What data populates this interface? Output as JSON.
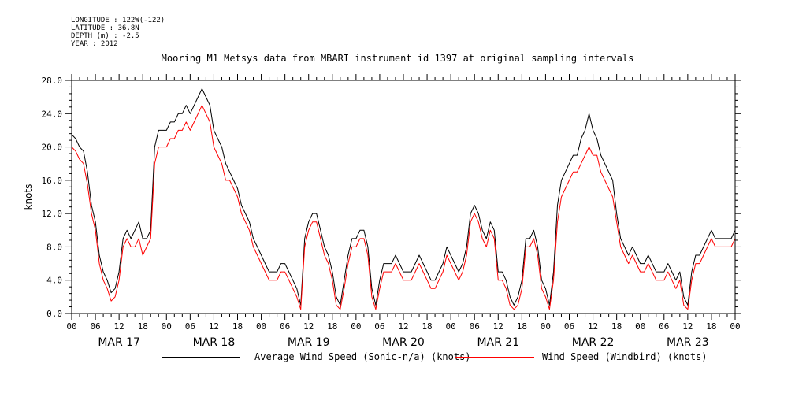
{
  "header": {
    "meta_lines": [
      "LONGITUDE : 122W(-122)",
      "LATITUDE : 36.8N",
      "DEPTH (m) : -2.5",
      "YEAR : 2012"
    ],
    "title": "Mooring M1 Metsys data from MBARI instrument id 1397 at original sampling intervals"
  },
  "chart_data": {
    "type": "line",
    "title": "Mooring M1 Metsys data from MBARI instrument id 1397 at original sampling intervals",
    "xlabel": "",
    "ylabel": "knots",
    "xlim_hours": [
      0,
      168
    ],
    "ylim": [
      0,
      28.0
    ],
    "y_ticks": [
      "0.0",
      "4.0",
      "8.0",
      "12.0",
      "16.0",
      "20.0",
      "24.0",
      "28.0"
    ],
    "x_hour_labels": [
      "00",
      "06",
      "12",
      "18",
      "00",
      "06",
      "12",
      "18",
      "00",
      "06",
      "12",
      "18",
      "00",
      "06",
      "12",
      "18",
      "00",
      "06",
      "12",
      "18",
      "00",
      "06",
      "12",
      "18",
      "00",
      "06",
      "12",
      "18",
      "00"
    ],
    "x_day_labels": [
      "MAR 17",
      "MAR 18",
      "MAR 19",
      "MAR 20",
      "MAR 21",
      "MAR 22",
      "MAR 23"
    ],
    "x_unit": "hours since MAR 17 00",
    "legend_position": "bottom",
    "series": [
      {
        "name": "Average Wind Speed (Sonic-n/a) (knots)",
        "color": "#000000",
        "x": [
          0,
          1,
          2,
          3,
          4,
          5,
          6,
          7,
          8,
          9,
          10,
          11,
          12,
          13,
          14,
          15,
          16,
          17,
          18,
          19,
          20,
          21,
          22,
          23,
          24,
          25,
          26,
          27,
          28,
          29,
          30,
          31,
          32,
          33,
          34,
          35,
          36,
          37,
          38,
          39,
          40,
          41,
          42,
          43,
          44,
          45,
          46,
          47,
          48,
          49,
          50,
          51,
          52,
          53,
          54,
          55,
          56,
          57,
          58,
          59,
          60,
          61,
          62,
          63,
          64,
          65,
          66,
          67,
          68,
          69,
          70,
          71,
          72,
          73,
          74,
          75,
          76,
          77,
          78,
          79,
          80,
          81,
          82,
          83,
          84,
          85,
          86,
          87,
          88,
          89,
          90,
          91,
          92,
          93,
          94,
          95,
          96,
          97,
          98,
          99,
          100,
          101,
          102,
          103,
          104,
          105,
          106,
          107,
          108,
          109,
          110,
          111,
          112,
          113,
          114,
          115,
          116,
          117,
          118,
          119,
          120,
          121,
          122,
          123,
          124,
          125,
          126,
          127,
          128,
          129,
          130,
          131,
          132,
          133,
          134,
          135,
          136,
          137,
          138,
          139,
          140,
          141,
          142,
          143,
          144,
          145,
          146,
          147,
          148,
          149,
          150,
          151,
          152,
          153,
          154,
          155,
          156,
          157,
          158,
          159,
          160,
          161,
          162,
          163,
          164,
          165,
          166,
          167,
          168
        ],
        "y": [
          21.5,
          21,
          20,
          19.5,
          17,
          13,
          11,
          7,
          5,
          4,
          2.5,
          3,
          5,
          9,
          10,
          9,
          10,
          11,
          9,
          9,
          10,
          20,
          22,
          22,
          22,
          23,
          23,
          24,
          24,
          25,
          24,
          25,
          26,
          27,
          26,
          25,
          22,
          21,
          20,
          18,
          17,
          16,
          15,
          13,
          12,
          11,
          9,
          8,
          7,
          6,
          5,
          5,
          5,
          6,
          6,
          5,
          4,
          3,
          1,
          9,
          11,
          12,
          12,
          10,
          8,
          7,
          5,
          2,
          1,
          4,
          7,
          9,
          9,
          10,
          10,
          8,
          3,
          1,
          4,
          6,
          6,
          6,
          7,
          6,
          5,
          5,
          5,
          6,
          7,
          6,
          5,
          4,
          4,
          5,
          6,
          8,
          7,
          6,
          5,
          6,
          8,
          12,
          13,
          12,
          10,
          9,
          11,
          10,
          5,
          5,
          4,
          2,
          1,
          2,
          4,
          9,
          9,
          10,
          8,
          4,
          3,
          1,
          5,
          13,
          16,
          17,
          18,
          19,
          19,
          21,
          22,
          24,
          22,
          21,
          19,
          18,
          17,
          16,
          12,
          9,
          8,
          7,
          8,
          7,
          6,
          6,
          7,
          6,
          5,
          5,
          5,
          6,
          5,
          4,
          5,
          2,
          1,
          5,
          7,
          7,
          8,
          9,
          10,
          9,
          9,
          9,
          9,
          9,
          10
        ]
      },
      {
        "name": "Wind Speed (Windbird) (knots)",
        "color": "#ff0000",
        "x": [
          0,
          1,
          2,
          3,
          4,
          5,
          6,
          7,
          8,
          9,
          10,
          11,
          12,
          13,
          14,
          15,
          16,
          17,
          18,
          19,
          20,
          21,
          22,
          23,
          24,
          25,
          26,
          27,
          28,
          29,
          30,
          31,
          32,
          33,
          34,
          35,
          36,
          37,
          38,
          39,
          40,
          41,
          42,
          43,
          44,
          45,
          46,
          47,
          48,
          49,
          50,
          51,
          52,
          53,
          54,
          55,
          56,
          57,
          58,
          59,
          60,
          61,
          62,
          63,
          64,
          65,
          66,
          67,
          68,
          69,
          70,
          71,
          72,
          73,
          74,
          75,
          76,
          77,
          78,
          79,
          80,
          81,
          82,
          83,
          84,
          85,
          86,
          87,
          88,
          89,
          90,
          91,
          92,
          93,
          94,
          95,
          96,
          97,
          98,
          99,
          100,
          101,
          102,
          103,
          104,
          105,
          106,
          107,
          108,
          109,
          110,
          111,
          112,
          113,
          114,
          115,
          116,
          117,
          118,
          119,
          120,
          121,
          122,
          123,
          124,
          125,
          126,
          127,
          128,
          129,
          130,
          131,
          132,
          133,
          134,
          135,
          136,
          137,
          138,
          139,
          140,
          141,
          142,
          143,
          144,
          145,
          146,
          147,
          148,
          149,
          150,
          151,
          152,
          153,
          154,
          155,
          156,
          157,
          158,
          159,
          160,
          161,
          162,
          163,
          164,
          165,
          166,
          167,
          168
        ],
        "y": [
          20,
          19.5,
          18.5,
          18,
          15.5,
          12,
          10,
          6,
          4,
          3,
          1.5,
          2,
          4,
          8,
          9,
          8,
          8,
          9,
          7,
          8,
          9,
          18,
          20,
          20,
          20,
          21,
          21,
          22,
          22,
          23,
          22,
          23,
          24,
          25,
          24,
          23,
          20,
          19,
          18,
          16,
          16,
          15,
          14,
          12,
          11,
          10,
          8,
          7,
          6,
          5,
          4,
          4,
          4,
          5,
          5,
          4,
          3,
          2,
          0.5,
          8,
          10,
          11,
          11,
          9,
          7,
          6,
          4,
          1,
          0.5,
          3,
          6,
          8,
          8,
          9,
          9,
          7,
          2,
          0.5,
          3,
          5,
          5,
          5,
          6,
          5,
          4,
          4,
          4,
          5,
          6,
          5,
          4,
          3,
          3,
          4,
          5,
          7,
          6,
          5,
          4,
          5,
          7,
          11,
          12,
          11,
          9,
          8,
          10,
          9,
          4,
          4,
          3,
          1,
          0.5,
          1,
          3,
          8,
          8,
          9,
          7,
          3,
          2,
          0.5,
          4,
          11,
          14,
          15,
          16,
          17,
          17,
          18,
          19,
          20,
          19,
          19,
          17,
          16,
          15,
          14,
          11,
          8,
          7,
          6,
          7,
          6,
          5,
          5,
          6,
          5,
          4,
          4,
          4,
          5,
          4,
          3,
          4,
          1,
          0.5,
          4,
          6,
          6,
          7,
          8,
          9,
          8,
          8,
          8,
          8,
          8,
          9
        ]
      }
    ]
  },
  "legend": {
    "series_1_label": "Average Wind Speed (Sonic-n/a) (knots)",
    "series_2_label": "Wind Speed (Windbird) (knots)"
  }
}
